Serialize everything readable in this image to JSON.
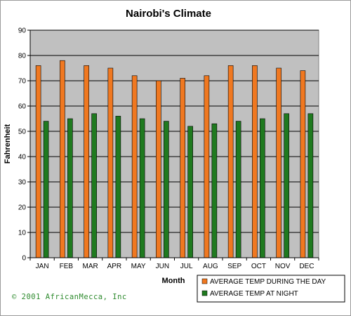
{
  "colors": {
    "plot_bg": "#c0c0c0",
    "day": "#f07820",
    "night": "#1f7a1f",
    "copyright": "#2e8b2e"
  },
  "copyright": "©  2001 AfricanMecca, Inc",
  "chart_data": {
    "type": "bar",
    "title": "Nairobi's Climate",
    "xlabel": "Month",
    "ylabel": "Fahrenheit",
    "ylim": [
      0,
      90
    ],
    "yticks": [
      0,
      10,
      20,
      30,
      40,
      50,
      60,
      70,
      80,
      90
    ],
    "grid": true,
    "legend_position": "bottom-right",
    "categories": [
      "JAN",
      "FEB",
      "MAR",
      "APR",
      "MAY",
      "JUN",
      "JUL",
      "AUG",
      "SEP",
      "OCT",
      "NOV",
      "DEC"
    ],
    "series": [
      {
        "name": "AVERAGE TEMP DURING THE DAY",
        "color": "#f07820",
        "values": [
          76,
          78,
          76,
          75,
          72,
          70,
          71,
          72,
          76,
          76,
          75,
          74
        ]
      },
      {
        "name": "AVERAGE TEMP AT NIGHT",
        "color": "#1f7a1f",
        "values": [
          54,
          55,
          57,
          56,
          55,
          54,
          52,
          53,
          54,
          55,
          57,
          57
        ]
      }
    ]
  }
}
